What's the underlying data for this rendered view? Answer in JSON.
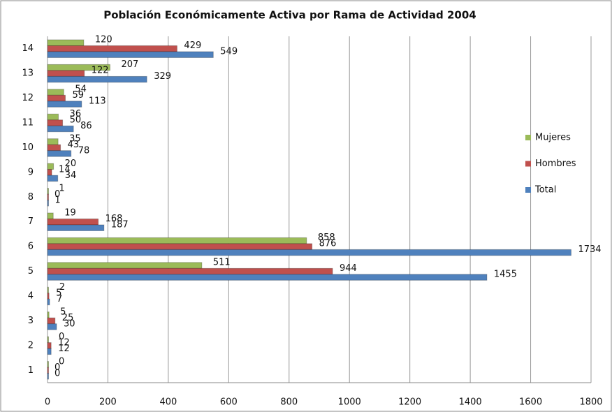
{
  "chart_data": {
    "type": "bar",
    "orientation": "horizontal",
    "title": "Población Económicamente Activa por Rama de Actividad 2004",
    "categories": [
      "1",
      "2",
      "3",
      "4",
      "5",
      "6",
      "7",
      "8",
      "9",
      "10",
      "11",
      "12",
      "13",
      "14"
    ],
    "series": [
      {
        "name": "Mujeres",
        "color": "#9bbb59",
        "values": [
          0,
          0,
          5,
          2,
          511,
          858,
          19,
          1,
          20,
          35,
          36,
          54,
          207,
          120
        ]
      },
      {
        "name": "Hombres",
        "color": "#c0504d",
        "values": [
          0,
          12,
          25,
          5,
          944,
          876,
          168,
          0,
          14,
          43,
          50,
          59,
          122,
          429
        ]
      },
      {
        "name": "Total",
        "color": "#4f81bd",
        "values": [
          0,
          12,
          30,
          7,
          1455,
          1734,
          187,
          1,
          34,
          78,
          86,
          113,
          329,
          549
        ]
      }
    ],
    "xlim": [
      0,
      1800
    ],
    "xticks": [
      0,
      200,
      400,
      600,
      800,
      1000,
      1200,
      1400,
      1600,
      1800
    ],
    "grid": true,
    "legend": "right"
  }
}
